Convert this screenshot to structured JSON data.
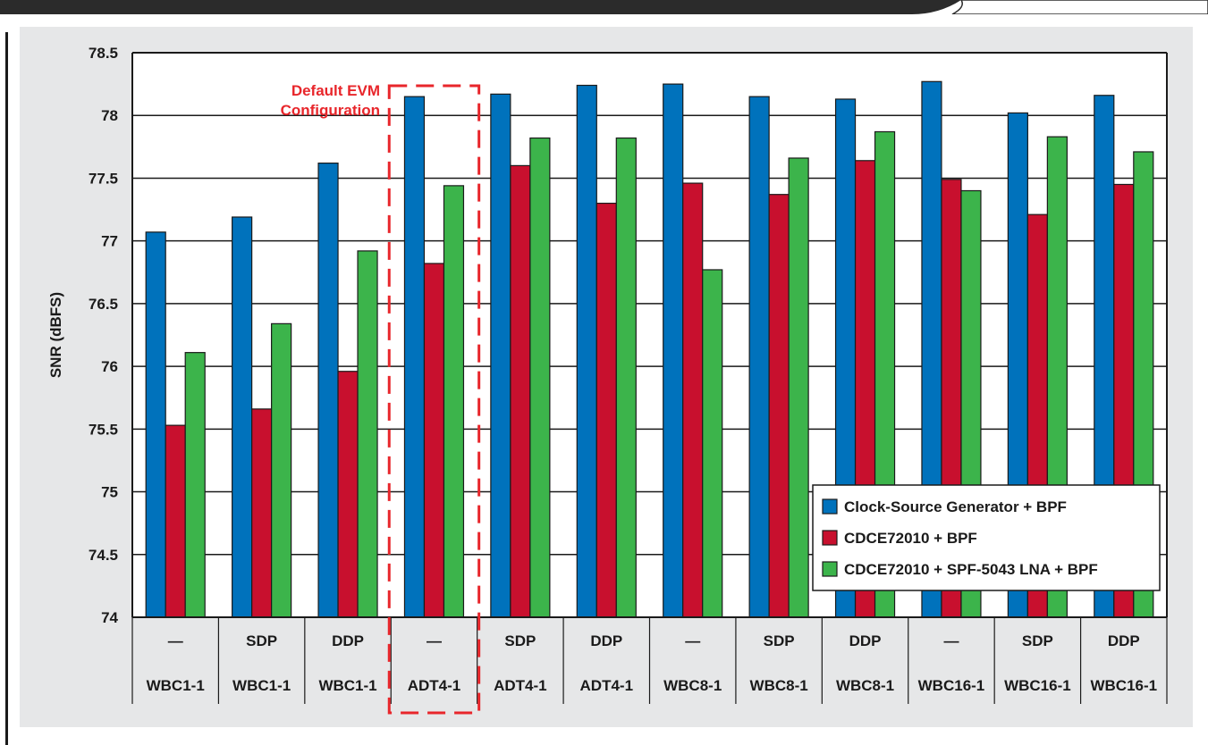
{
  "chart_data": {
    "type": "bar",
    "title": "",
    "xlabel": "",
    "ylabel": "SNR (dBFS)",
    "ylim": [
      74,
      78.5
    ],
    "yticks": [
      74,
      74.5,
      75,
      75.5,
      76,
      76.5,
      77,
      77.5,
      78,
      78.5
    ],
    "ytick_labels": [
      "74",
      "74.5",
      "75",
      "75.5",
      "76",
      "76.5",
      "77",
      "77.5",
      "78",
      "78.5"
    ],
    "grid": true,
    "legend_position": "bottom-right",
    "categories": [
      {
        "filter": "—",
        "transformer": "WBC1-1"
      },
      {
        "filter": "SDP",
        "transformer": "WBC1-1"
      },
      {
        "filter": "DDP",
        "transformer": "WBC1-1"
      },
      {
        "filter": "—",
        "transformer": "ADT4-1"
      },
      {
        "filter": "SDP",
        "transformer": "ADT4-1"
      },
      {
        "filter": "DDP",
        "transformer": "ADT4-1"
      },
      {
        "filter": "—",
        "transformer": "WBC8-1"
      },
      {
        "filter": "SDP",
        "transformer": "WBC8-1"
      },
      {
        "filter": "DDP",
        "transformer": "WBC8-1"
      },
      {
        "filter": "—",
        "transformer": "WBC16-1"
      },
      {
        "filter": "SDP",
        "transformer": "WBC16-1"
      },
      {
        "filter": "DDP",
        "transformer": "WBC16-1"
      }
    ],
    "series": [
      {
        "name": "Clock-Source Generator + BPF",
        "color": "#0072bc",
        "values": [
          77.07,
          77.19,
          77.62,
          78.15,
          78.17,
          78.24,
          78.25,
          78.15,
          78.13,
          78.27,
          78.02,
          78.16
        ]
      },
      {
        "name": "CDCE72010 + BPF",
        "color": "#c8102e",
        "values": [
          75.53,
          75.66,
          75.96,
          76.82,
          77.6,
          77.3,
          77.46,
          77.37,
          77.64,
          77.49,
          77.21,
          77.45
        ]
      },
      {
        "name": "CDCE72010 + SPF-5043 LNA + BPF",
        "color": "#3cb44b",
        "values": [
          76.11,
          76.34,
          76.92,
          77.44,
          77.82,
          77.82,
          76.77,
          77.66,
          77.87,
          77.4,
          77.83,
          77.71
        ]
      }
    ],
    "annotation": {
      "lines": [
        "Default EVM",
        "Configuration"
      ],
      "highlight_category": 3,
      "color": "#e8262b"
    }
  }
}
